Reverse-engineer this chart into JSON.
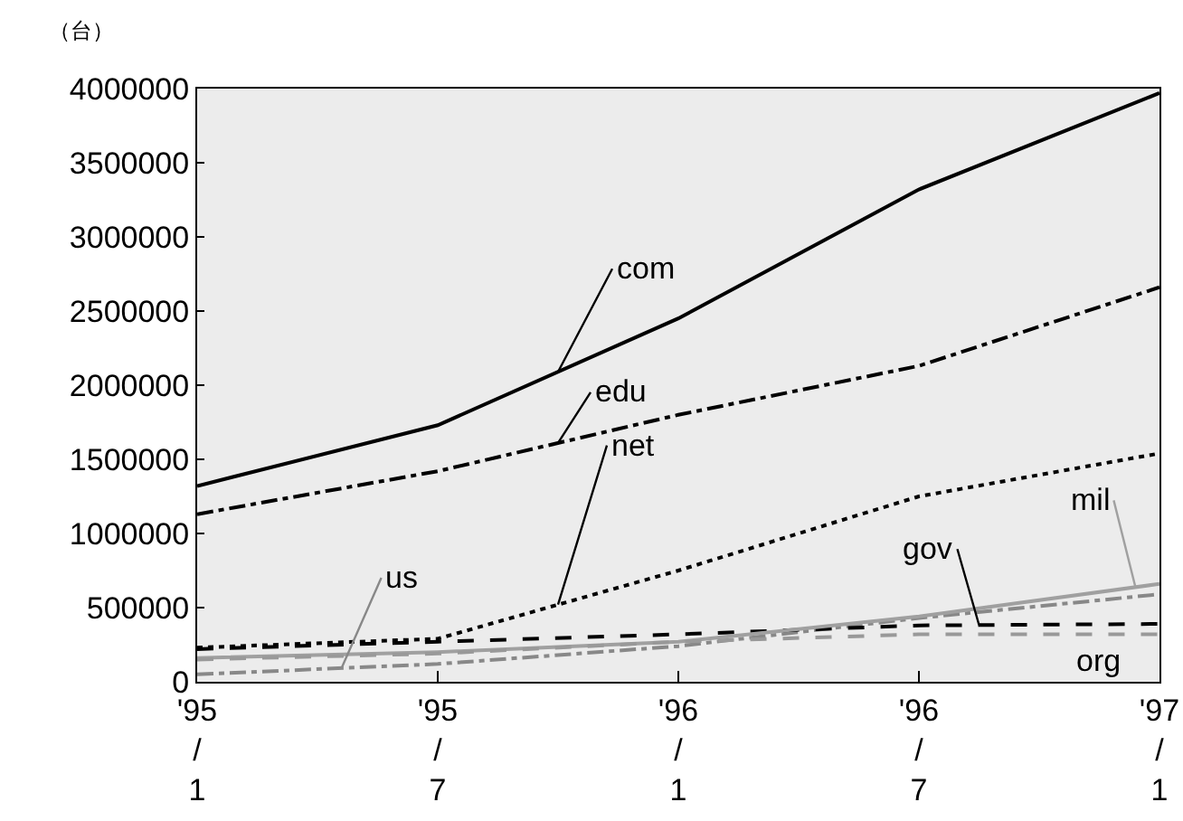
{
  "chart_data": {
    "type": "line",
    "ylabel": "（台）",
    "categories": [
      "'95/1",
      "'95/7",
      "'96/1",
      "'96/7",
      "'97/1"
    ],
    "ylim": [
      0,
      4000000
    ],
    "yticks": [
      0,
      500000,
      1000000,
      1500000,
      2000000,
      2500000,
      3000000,
      3500000,
      4000000
    ],
    "grid": false,
    "legend": false,
    "marker": "none",
    "series": [
      {
        "name": "com",
        "color": "#000000",
        "line_style": "solid",
        "values": [
          1320000,
          1730000,
          2450000,
          3320000,
          3970000
        ]
      },
      {
        "name": "edu",
        "color": "#000000",
        "line_style": "dashdot",
        "values": [
          1130000,
          1420000,
          1800000,
          2130000,
          2660000
        ]
      },
      {
        "name": "net",
        "color": "#000000",
        "line_style": "dotted",
        "values": [
          230000,
          290000,
          750000,
          1250000,
          1540000
        ]
      },
      {
        "name": "us",
        "color": "#888888",
        "line_style": "dashdot",
        "values": [
          50000,
          120000,
          240000,
          430000,
          590000
        ]
      },
      {
        "name": "gov",
        "color": "#000000",
        "line_style": "dashed",
        "values": [
          220000,
          270000,
          320000,
          380000,
          390000
        ]
      },
      {
        "name": "mil",
        "color": "#a0a0a0",
        "line_style": "solid",
        "values": [
          160000,
          200000,
          270000,
          440000,
          660000
        ]
      },
      {
        "name": "org",
        "color": "#999999",
        "line_style": "dashed",
        "values": [
          150000,
          190000,
          270000,
          320000,
          320000
        ]
      }
    ]
  }
}
